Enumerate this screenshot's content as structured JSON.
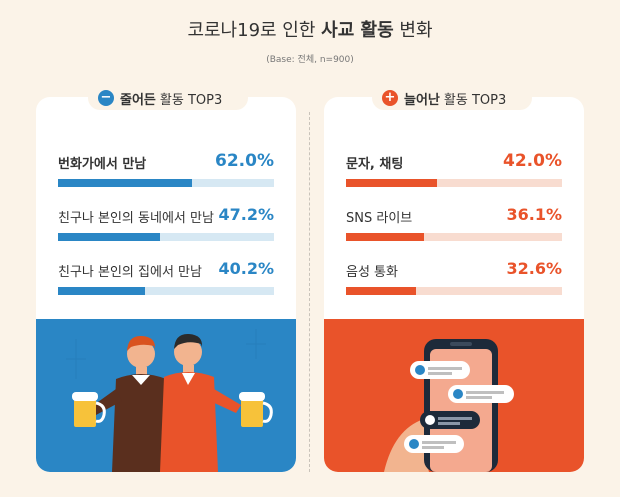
{
  "title": {
    "normal": "코로나19로 인한",
    "bold": "사교 활동",
    "suffix": "변화"
  },
  "base_note": "(Base: 전체, n=900)",
  "decreased": {
    "pill_bold": "줄어든",
    "pill_rest": "활동 TOP3",
    "pill_sign": "−",
    "items": [
      {
        "label": "번화가에서 만남",
        "value_text": "62.0%",
        "value": 62.0
      },
      {
        "label": "친구나 본인의 동네에서 만남",
        "value_text": "47.2%",
        "value": 47.2
      },
      {
        "label": "친구나 본인의 집에서 만남",
        "value_text": "40.2%",
        "value": 40.2
      }
    ]
  },
  "increased": {
    "pill_bold": "늘어난",
    "pill_rest": "활동 TOP3",
    "pill_sign": "+",
    "items": [
      {
        "label": "문자, 채팅",
        "value_text": "42.0%",
        "value": 42.0
      },
      {
        "label": "SNS 라이브",
        "value_text": "36.1%",
        "value": 36.1
      },
      {
        "label": "음성 통화",
        "value_text": "32.6%",
        "value": 32.6
      }
    ]
  },
  "colors": {
    "blue": "#2a86c5",
    "orange": "#e9532a",
    "background": "#fbf3e8"
  }
}
